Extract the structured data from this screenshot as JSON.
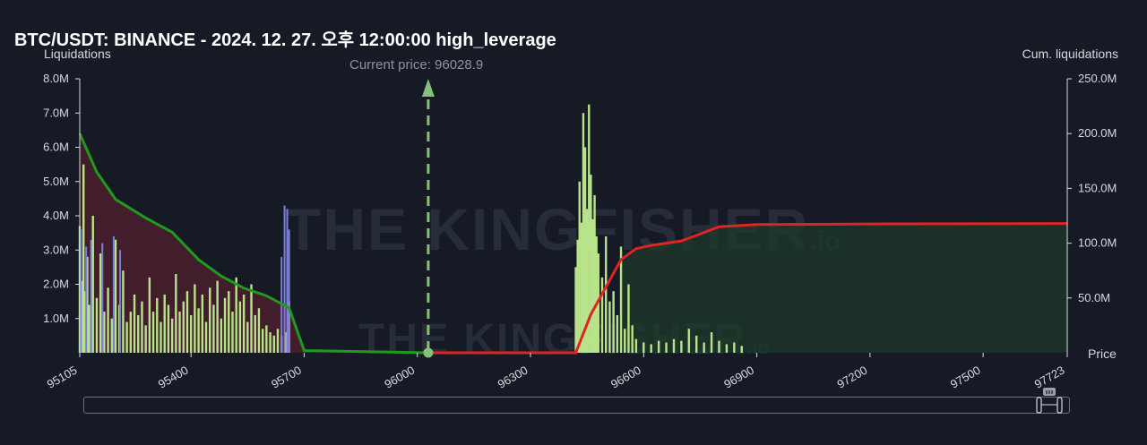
{
  "title": "BTC/USDT: BINANCE - 2024. 12. 27. 오후 12:00:00 high_leverage",
  "left_axis_label": "Liquidations",
  "right_axis_label": "Cum. liquidations",
  "x_axis_label": "Price",
  "current_price_label": "Current price: 96028.9",
  "watermark": {
    "text": "THE KINGFISHER",
    "suffix": ".io"
  },
  "colors": {
    "background": "#161a25",
    "long_cum_line": "#1f9a1f",
    "short_cum_line": "#e02424",
    "long_fill": "#4a1f2e",
    "short_fill": "#1d3a2a",
    "bars_green": "#b9e38a",
    "bars_blue": "#7b7fd8",
    "current_price_marker": "#86c07a"
  },
  "chart_data": {
    "type": "bar",
    "title": "BTC/USDT: BINANCE - 2024. 12. 27. 오후 12:00:00 high_leverage",
    "xlabel": "Price",
    "ylabel": "Liquidations",
    "y2label": "Cum. liquidations",
    "xlim": [
      95105,
      97723
    ],
    "ylim": [
      0,
      8000000
    ],
    "y2lim": [
      0,
      250000000
    ],
    "x_ticks": [
      "95105",
      "95400",
      "95700",
      "96000",
      "96300",
      "96600",
      "96900",
      "97200",
      "97500",
      "97723"
    ],
    "y_ticks": [
      "8.0M",
      "7.0M",
      "6.0M",
      "5.0M",
      "4.0M",
      "3.0M",
      "2.0M",
      "1.0M"
    ],
    "y2_ticks": [
      "250.0M",
      "200.0M",
      "150.0M",
      "100.0M",
      "50.0M"
    ],
    "current_price": 96028.9,
    "series": [
      {
        "kind": "bars-long",
        "x": [
          95105,
          95110,
          95115,
          95120,
          95125,
          95130,
          95140,
          95150,
          95160,
          95170,
          95180,
          95190,
          95200,
          95210,
          95220,
          95230,
          95240,
          95250,
          95260,
          95270,
          95280,
          95290,
          95300,
          95310,
          95320,
          95330,
          95340,
          95350,
          95360,
          95370,
          95380,
          95390,
          95400,
          95410,
          95420,
          95430,
          95440,
          95450,
          95460,
          95470,
          95480,
          95490,
          95500,
          95510,
          95520,
          95530,
          95540,
          95550,
          95560,
          95570,
          95580,
          95590,
          95600,
          95610,
          95620,
          95630,
          95640,
          95650,
          95660
        ],
        "values": [
          3700000,
          2100000,
          5500000,
          1800000,
          2800000,
          1400000,
          4000000,
          1600000,
          2900000,
          1200000,
          1900000,
          1000000,
          3300000,
          1400000,
          2400000,
          900000,
          1200000,
          1700000,
          1100000,
          1500000,
          800000,
          2200000,
          1200000,
          1600000,
          900000,
          1700000,
          1400000,
          1000000,
          2300000,
          1200000,
          1500000,
          1800000,
          1100000,
          2000000,
          1300000,
          1700000,
          900000,
          1900000,
          1400000,
          2100000,
          1000000,
          1600000,
          1800000,
          1200000,
          2200000,
          1500000,
          1700000,
          900000,
          2000000,
          1100000,
          1300000,
          700000,
          800000,
          600000,
          500000,
          700000,
          500000,
          600000,
          1500000
        ]
      },
      {
        "kind": "bars-blue",
        "x": [
          95108,
          95122,
          95135,
          95165,
          95195,
          95212,
          95640,
          95648,
          95655,
          95660
        ],
        "values": [
          3600000,
          3100000,
          3300000,
          3200000,
          3400000,
          3000000,
          2800000,
          4300000,
          4200000,
          3600000
        ]
      },
      {
        "kind": "bars-short",
        "x": [
          96420,
          96425,
          96430,
          96435,
          96440,
          96445,
          96450,
          96455,
          96460,
          96465,
          96470,
          96475,
          96480,
          96490,
          96500,
          96510,
          96520,
          96530,
          96540,
          96550,
          96560,
          96570,
          96580,
          96600,
          96620,
          96640,
          96660,
          96680,
          96700,
          96720,
          96740,
          96760,
          96780,
          96800,
          96820,
          96840,
          96860
        ],
        "values": [
          2500000,
          3300000,
          5000000,
          3800000,
          7000000,
          6000000,
          4200000,
          7250000,
          5200000,
          3900000,
          4600000,
          3400000,
          2900000,
          2200000,
          3400000,
          1500000,
          1800000,
          1100000,
          3100000,
          700000,
          2000000,
          800000,
          400000,
          300000,
          250000,
          350000,
          300000,
          400000,
          350000,
          700000,
          500000,
          300000,
          600000,
          350000,
          250000,
          300000,
          200000
        ]
      },
      {
        "kind": "cum-long-line",
        "name": "",
        "x": [
          95105,
          95150,
          95200,
          95280,
          95350,
          95420,
          95480,
          95540,
          95600,
          95660,
          95700,
          96028.9
        ],
        "values": [
          200000000,
          165000000,
          140000000,
          123000000,
          110000000,
          85000000,
          70000000,
          59000000,
          52000000,
          41000000,
          2000000,
          0
        ]
      },
      {
        "kind": "cum-short-line",
        "name": "",
        "x": [
          96028.9,
          96420,
          96460,
          96500,
          96540,
          96580,
          96620,
          96700,
          96800,
          96900,
          97200,
          97500,
          97723
        ],
        "values": [
          0,
          0,
          35000000,
          60000000,
          85000000,
          95000000,
          98000000,
          102000000,
          115000000,
          117000000,
          117500000,
          117800000,
          118000000
        ]
      }
    ]
  }
}
